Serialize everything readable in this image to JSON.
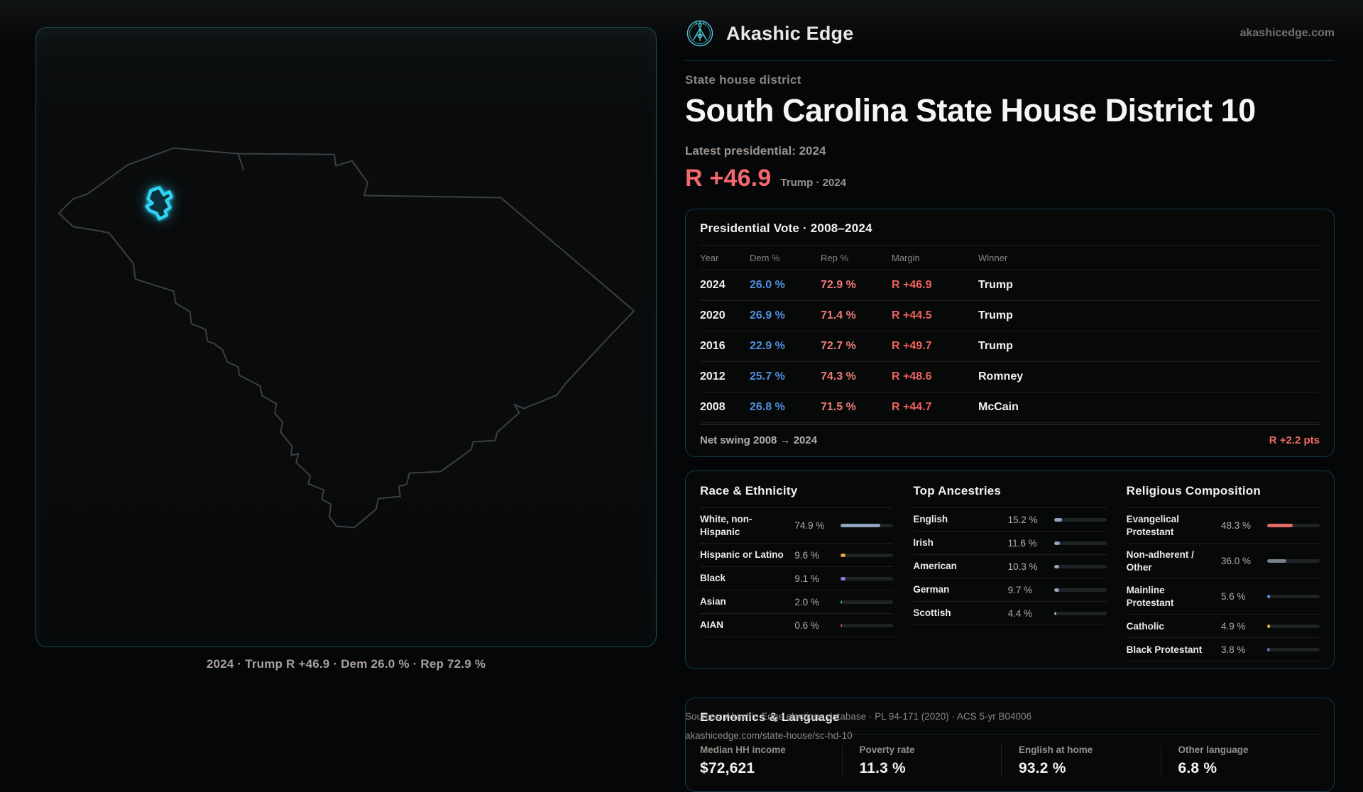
{
  "brand": {
    "name": "Akashic Edge",
    "domain": "akashicedge.com",
    "accent_cyan": "#2fd2f2"
  },
  "page": {
    "kicker": "State house district",
    "title": "South Carolina State House District 10",
    "latest_label": "Latest presidential: 2024",
    "margin_big": "R +46.9",
    "margin_context": "Trump · 2024",
    "margin_color": "#f2686d"
  },
  "map": {
    "caption": "2024 · Trump R +46.9 · Dem 26.0 % · Rep 72.9 %",
    "highlight_color": "#2fd2f2"
  },
  "presidential": {
    "title": "Presidential Vote · 2008–2024",
    "columns": [
      "Year",
      "Dem %",
      "Rep %",
      "Margin",
      "Winner"
    ],
    "rows": [
      {
        "year": "2024",
        "dem": "26.0 %",
        "rep": "72.9 %",
        "margin": "R +46.9",
        "winner": "Trump"
      },
      {
        "year": "2020",
        "dem": "26.9 %",
        "rep": "71.4 %",
        "margin": "R +44.5",
        "winner": "Trump"
      },
      {
        "year": "2016",
        "dem": "22.9 %",
        "rep": "72.7 %",
        "margin": "R +49.7",
        "winner": "Trump"
      },
      {
        "year": "2012",
        "dem": "25.7 %",
        "rep": "74.3 %",
        "margin": "R +48.6",
        "winner": "Romney"
      },
      {
        "year": "2008",
        "dem": "26.8 %",
        "rep": "71.5 %",
        "margin": "R +44.7",
        "winner": "McCain"
      }
    ],
    "dem_color": "#4f90e0",
    "rep_color": "#ef7c78",
    "margin_color": "#f2625e",
    "net_swing_label": "Net swing 2008 → 2024",
    "net_swing_value": "R +2.2 pts"
  },
  "demographics": {
    "race": {
      "title": "Race & Ethnicity",
      "rows": [
        {
          "label": "White, non-Hispanic",
          "value": "74.9 %",
          "pct": 74.9,
          "color": "#8ea4bb"
        },
        {
          "label": "Hispanic or Latino",
          "value": "9.6 %",
          "pct": 9.6,
          "color": "#e8a23c"
        },
        {
          "label": "Black",
          "value": "9.1 %",
          "pct": 9.1,
          "color": "#8d7ce0"
        },
        {
          "label": "Asian",
          "value": "2.0 %",
          "pct": 2.0,
          "color": "#2aa98a"
        },
        {
          "label": "AIAN",
          "value": "0.6 %",
          "pct": 0.6,
          "color": "#b05c2c"
        }
      ]
    },
    "ancestries": {
      "title": "Top Ancestries",
      "rows": [
        {
          "label": "English",
          "value": "15.2 %",
          "pct": 15.2,
          "color": "#8ea4bb"
        },
        {
          "label": "Irish",
          "value": "11.6 %",
          "pct": 11.6,
          "color": "#8ea4bb"
        },
        {
          "label": "American",
          "value": "10.3 %",
          "pct": 10.3,
          "color": "#8ea4bb"
        },
        {
          "label": "German",
          "value": "9.7 %",
          "pct": 9.7,
          "color": "#8ea4bb"
        },
        {
          "label": "Scottish",
          "value": "4.4 %",
          "pct": 4.4,
          "color": "#8ea4bb"
        }
      ]
    },
    "religion": {
      "title": "Religious Composition",
      "rows": [
        {
          "label": "Evangelical Protestant",
          "value": "48.3 %",
          "pct": 48.3,
          "color": "#e06b68"
        },
        {
          "label": "Non-adherent / Other",
          "value": "36.0 %",
          "pct": 36.0,
          "color": "#78808f"
        },
        {
          "label": "Mainline Protestant",
          "value": "5.6 %",
          "pct": 5.6,
          "color": "#4f90e0"
        },
        {
          "label": "Catholic",
          "value": "4.9 %",
          "pct": 4.9,
          "color": "#e2b33c"
        },
        {
          "label": "Black Protestant",
          "value": "3.8 %",
          "pct": 3.8,
          "color": "#8d7ce0"
        }
      ]
    }
  },
  "economics": {
    "title": "Economics & Language",
    "stats": [
      {
        "label": "Median HH income",
        "value": "$72,621"
      },
      {
        "label": "Poverty rate",
        "value": "11.3 %"
      },
      {
        "label": "English at home",
        "value": "93.2 %"
      },
      {
        "label": "Other language",
        "value": "6.8 %"
      }
    ]
  },
  "footer": {
    "line1": "Sources: Akashic Edge elections database · PL 94-171 (2020) · ACS 5-yr B04006",
    "line2": "akashicedge.com/state-house/sc-hd-10"
  }
}
